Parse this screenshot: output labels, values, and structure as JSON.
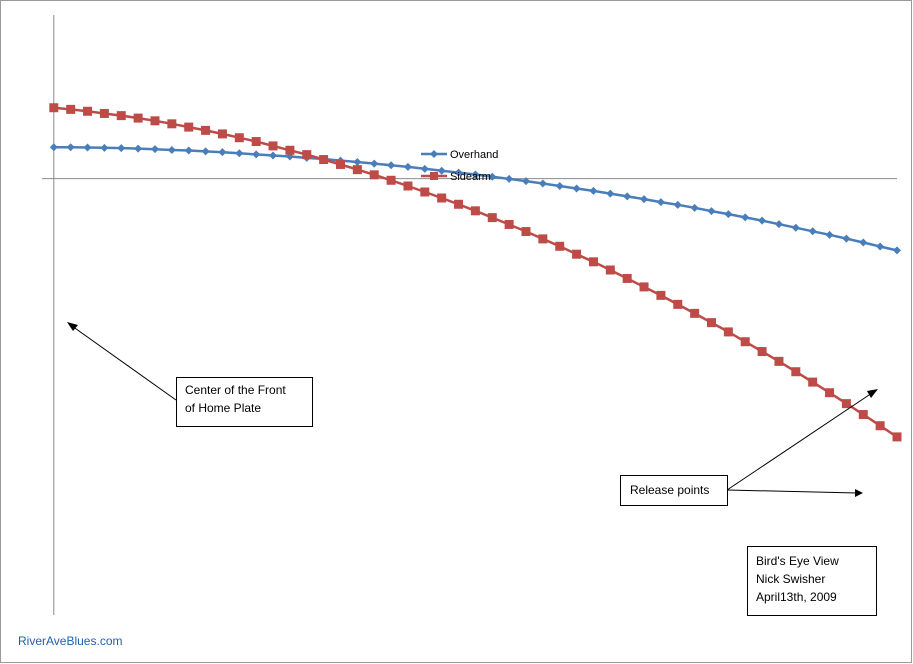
{
  "chart_data": {
    "type": "line",
    "title": "",
    "xlabel": "",
    "ylabel": "",
    "grid": false,
    "legend_position": "top-center",
    "series": [
      {
        "name": "Overhand",
        "color": "#4a7ebb",
        "marker": "diamond",
        "points": [
          [
            0.0,
            1.15
          ],
          [
            0.1,
            1.15
          ],
          [
            0.2,
            1.14
          ],
          [
            0.3,
            1.13
          ],
          [
            0.4,
            1.12
          ],
          [
            0.5,
            1.1
          ],
          [
            0.6,
            1.08
          ],
          [
            0.7,
            1.05
          ],
          [
            0.8,
            1.03
          ],
          [
            0.9,
            1.0
          ],
          [
            1.0,
            0.97
          ],
          [
            1.1,
            0.93
          ],
          [
            1.2,
            0.89
          ],
          [
            1.3,
            0.85
          ],
          [
            1.4,
            0.81
          ],
          [
            1.5,
            0.76
          ],
          [
            1.6,
            0.72
          ],
          [
            1.7,
            0.66
          ],
          [
            1.8,
            0.61
          ],
          [
            1.9,
            0.55
          ],
          [
            2.0,
            0.49
          ],
          [
            2.1,
            0.43
          ],
          [
            2.2,
            0.36
          ],
          [
            2.3,
            0.29
          ],
          [
            2.4,
            0.22
          ],
          [
            2.5,
            0.15
          ],
          [
            2.6,
            0.07
          ],
          [
            2.7,
            -0.01
          ],
          [
            2.8,
            -0.09
          ],
          [
            2.9,
            -0.18
          ],
          [
            3.0,
            -0.27
          ],
          [
            3.1,
            -0.36
          ],
          [
            3.2,
            -0.45
          ],
          [
            3.3,
            -0.55
          ],
          [
            3.4,
            -0.65
          ],
          [
            3.5,
            -0.75
          ],
          [
            3.6,
            -0.86
          ],
          [
            3.7,
            -0.96
          ],
          [
            3.8,
            -1.07
          ],
          [
            3.9,
            -1.19
          ],
          [
            4.0,
            -1.3
          ],
          [
            4.1,
            -1.42
          ],
          [
            4.2,
            -1.54
          ],
          [
            4.3,
            -1.67
          ],
          [
            4.4,
            -1.8
          ],
          [
            4.5,
            -1.93
          ],
          [
            4.6,
            -2.06
          ],
          [
            4.7,
            -2.2
          ],
          [
            4.8,
            -2.34
          ],
          [
            4.9,
            -2.49
          ],
          [
            5.0,
            -2.63
          ]
        ]
      },
      {
        "name": "Sidearm",
        "color": "#be4b48",
        "marker": "square",
        "points": [
          [
            0.0,
            2.6
          ],
          [
            0.1,
            2.54
          ],
          [
            0.2,
            2.47
          ],
          [
            0.3,
            2.39
          ],
          [
            0.4,
            2.31
          ],
          [
            0.5,
            2.22
          ],
          [
            0.6,
            2.12
          ],
          [
            0.7,
            2.01
          ],
          [
            0.8,
            1.89
          ],
          [
            0.9,
            1.77
          ],
          [
            1.0,
            1.64
          ],
          [
            1.1,
            1.5
          ],
          [
            1.2,
            1.36
          ],
          [
            1.3,
            1.2
          ],
          [
            1.4,
            1.04
          ],
          [
            1.5,
            0.88
          ],
          [
            1.6,
            0.7
          ],
          [
            1.7,
            0.52
          ],
          [
            1.8,
            0.33
          ],
          [
            1.9,
            0.14
          ],
          [
            2.0,
            -0.06
          ],
          [
            2.1,
            -0.27
          ],
          [
            2.2,
            -0.49
          ],
          [
            2.3,
            -0.71
          ],
          [
            2.4,
            -0.94
          ],
          [
            2.5,
            -1.18
          ],
          [
            2.6,
            -1.43
          ],
          [
            2.7,
            -1.68
          ],
          [
            2.8,
            -1.94
          ],
          [
            2.9,
            -2.21
          ],
          [
            3.0,
            -2.48
          ],
          [
            3.1,
            -2.77
          ],
          [
            3.2,
            -3.05
          ],
          [
            3.3,
            -3.35
          ],
          [
            3.4,
            -3.66
          ],
          [
            3.5,
            -3.97
          ],
          [
            3.6,
            -4.28
          ],
          [
            3.7,
            -4.61
          ],
          [
            3.8,
            -4.94
          ],
          [
            3.9,
            -5.28
          ],
          [
            4.0,
            -5.62
          ],
          [
            4.1,
            -5.98
          ],
          [
            4.2,
            -6.34
          ],
          [
            4.3,
            -6.7
          ],
          [
            4.4,
            -7.08
          ],
          [
            4.5,
            -7.46
          ],
          [
            4.6,
            -7.85
          ],
          [
            4.7,
            -8.25
          ],
          [
            4.8,
            -8.65
          ],
          [
            4.9,
            -9.06
          ],
          [
            5.0,
            -9.47
          ]
        ]
      }
    ],
    "xlim": [
      -0.07,
      5.0
    ],
    "ylim": [
      -16.0,
      6.0
    ],
    "annotations": [
      {
        "id": "home-plate",
        "lines": [
          "Center of the Front",
          "of Home Plate"
        ]
      },
      {
        "id": "release",
        "lines": [
          "Release points"
        ]
      },
      {
        "id": "info",
        "lines": [
          "Bird's Eye View",
          "Nick Swisher",
          "April13th, 2009"
        ]
      }
    ]
  },
  "credit": "RiverAveBlues.com"
}
